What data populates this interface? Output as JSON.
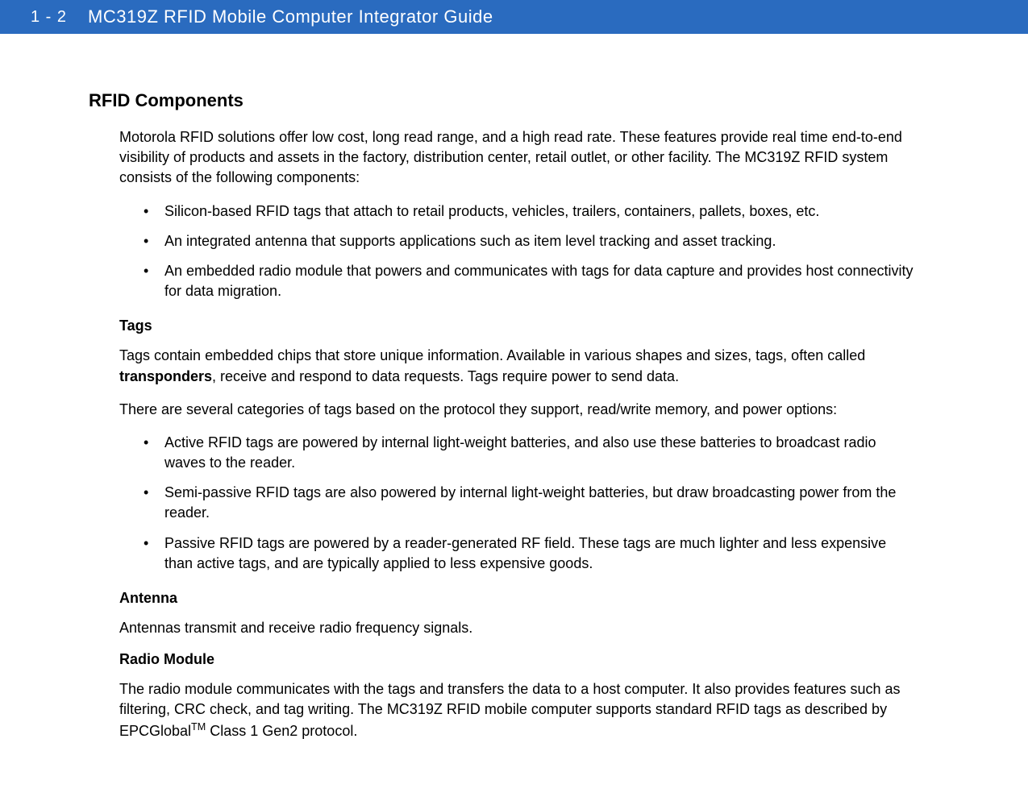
{
  "header": {
    "page_number": "1 - 2",
    "title": "MC319Z RFID Mobile Computer Integrator Guide",
    "bg_color": "#2a6bbf",
    "text_color": "#ffffff"
  },
  "section": {
    "heading": "RFID Components",
    "intro": "Motorola RFID solutions offer low cost, long read range, and a high read rate. These features provide real time end-to-end visibility of products and assets in the factory, distribution center, retail outlet, or other facility. The MC319Z RFID system consists of the following components:",
    "bullets": [
      "Silicon-based RFID tags that attach to retail products, vehicles, trailers, containers, pallets, boxes, etc.",
      "An integrated antenna that supports applications such as item level tracking and asset tracking.",
      "An embedded radio module that powers and communicates with tags for data capture and provides host connectivity for data migration."
    ]
  },
  "tags": {
    "heading": "Tags",
    "p1a": "Tags contain embedded chips that store unique information. Available in various shapes and sizes, tags, often called ",
    "p1_bold": "transponders",
    "p1b": ", receive and respond to data requests. Tags require power to send data.",
    "p2": "There are several categories of tags based on the protocol they support, read/write memory, and power options:",
    "bullets": [
      "Active RFID tags are powered by internal light-weight batteries, and also use these batteries to broadcast radio waves to the reader.",
      "Semi-passive RFID tags are also powered by internal light-weight batteries, but draw broadcasting power from the reader.",
      "Passive RFID tags are powered by a reader-generated RF field. These tags are much lighter and less expensive than active tags, and are typically applied to less expensive goods."
    ]
  },
  "antenna": {
    "heading": "Antenna",
    "p1": "Antennas transmit and receive radio frequency signals."
  },
  "radio": {
    "heading": "Radio Module",
    "p1a": "The radio module communicates with the tags and transfers the data to a host computer. It also provides features such as filtering, CRC check, and tag writing. The MC319Z RFID mobile computer supports standard RFID tags as described by EPCGlobal",
    "p1_sup": "TM",
    "p1b": " Class 1 Gen2 protocol."
  }
}
